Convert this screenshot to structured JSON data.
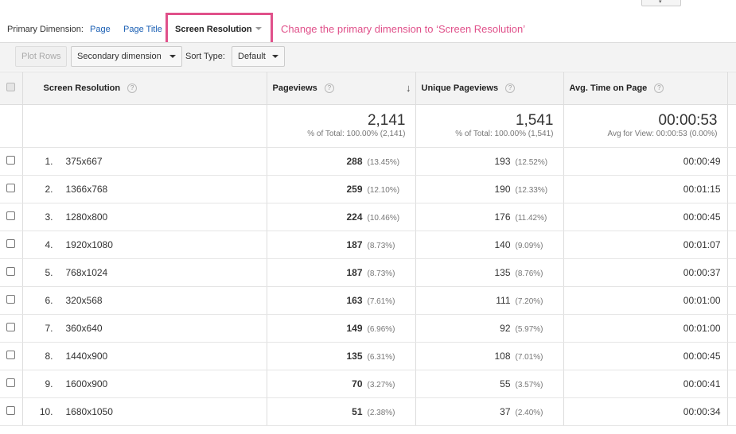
{
  "top_stub_icon": "chevron-down-icon",
  "primary_dimension": {
    "label": "Primary Dimension:",
    "options": [
      "Page",
      "Page Title"
    ],
    "active": "Screen Resolution"
  },
  "annotation": "Change the primary dimension to ‘Screen Resolution’",
  "toolbar": {
    "plot_rows": "Plot Rows",
    "secondary_dimension": "Secondary dimension",
    "sort_type_label": "Sort Type:",
    "sort_type_value": "Default"
  },
  "columns": {
    "dimension": "Screen Resolution",
    "pageviews": "Pageviews",
    "unique_pageviews": "Unique Pageviews",
    "avg_time": "Avg. Time on Page",
    "help": "?"
  },
  "totals": {
    "pageviews": "2,141",
    "pageviews_sub": "% of Total: 100.00% (2,141)",
    "unique_pageviews": "1,541",
    "unique_pageviews_sub": "% of Total: 100.00% (1,541)",
    "avg_time": "00:00:53",
    "avg_time_sub": "Avg for View: 00:00:53 (0.00%)"
  },
  "rows": [
    {
      "num": "1.",
      "res": "375x667",
      "pv": "288",
      "pv_pct": "(13.45%)",
      "upv": "193",
      "upv_pct": "(12.52%)",
      "time": "00:00:49"
    },
    {
      "num": "2.",
      "res": "1366x768",
      "pv": "259",
      "pv_pct": "(12.10%)",
      "upv": "190",
      "upv_pct": "(12.33%)",
      "time": "00:01:15"
    },
    {
      "num": "3.",
      "res": "1280x800",
      "pv": "224",
      "pv_pct": "(10.46%)",
      "upv": "176",
      "upv_pct": "(11.42%)",
      "time": "00:00:45"
    },
    {
      "num": "4.",
      "res": "1920x1080",
      "pv": "187",
      "pv_pct": "(8.73%)",
      "upv": "140",
      "upv_pct": "(9.09%)",
      "time": "00:01:07"
    },
    {
      "num": "5.",
      "res": "768x1024",
      "pv": "187",
      "pv_pct": "(8.73%)",
      "upv": "135",
      "upv_pct": "(8.76%)",
      "time": "00:00:37"
    },
    {
      "num": "6.",
      "res": "320x568",
      "pv": "163",
      "pv_pct": "(7.61%)",
      "upv": "111",
      "upv_pct": "(7.20%)",
      "time": "00:01:00"
    },
    {
      "num": "7.",
      "res": "360x640",
      "pv": "149",
      "pv_pct": "(6.96%)",
      "upv": "92",
      "upv_pct": "(5.97%)",
      "time": "00:01:00"
    },
    {
      "num": "8.",
      "res": "1440x900",
      "pv": "135",
      "pv_pct": "(6.31%)",
      "upv": "108",
      "upv_pct": "(7.01%)",
      "time": "00:00:45"
    },
    {
      "num": "9.",
      "res": "1600x900",
      "pv": "70",
      "pv_pct": "(3.27%)",
      "upv": "55",
      "upv_pct": "(3.57%)",
      "time": "00:00:41"
    },
    {
      "num": "10.",
      "res": "1680x1050",
      "pv": "51",
      "pv_pct": "(2.38%)",
      "upv": "37",
      "upv_pct": "(2.40%)",
      "time": "00:00:34"
    }
  ]
}
